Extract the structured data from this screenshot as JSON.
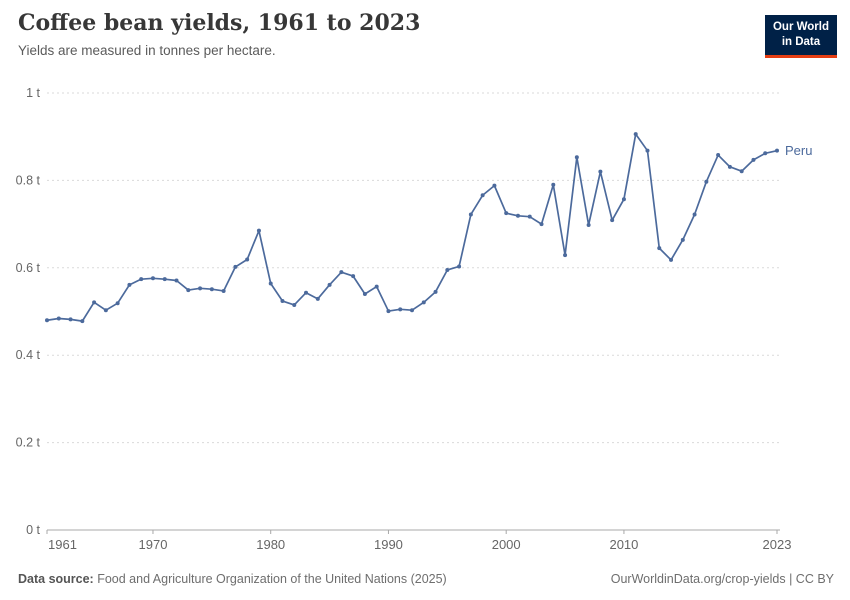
{
  "header": {
    "title": "Coffee bean yields, 1961 to 2023",
    "subtitle": "Yields are measured in tonnes per hectare."
  },
  "logo": {
    "line1": "Our World",
    "line2": "in Data",
    "bg_color": "#002147",
    "accent_color": "#E63E13"
  },
  "footer": {
    "source_label": "Data source:",
    "source_text": " Food and Agriculture Organization of the United Nations (2025)",
    "right_link": "OurWorldinData.org/crop-yields",
    "right_separator": " | ",
    "right_license": "CC BY"
  },
  "chart_data": {
    "type": "line",
    "title": "Coffee bean yields, 1961 to 2023",
    "xlabel": "",
    "ylabel": "tonnes per hectare",
    "xlim": [
      1961,
      2023
    ],
    "ylim": [
      0,
      1
    ],
    "grid": "horizontal-dashed",
    "legend_position": "end-of-line-label",
    "axis_color": "#a8a8a8",
    "grid_color": "#dadada",
    "tick_label_color": "#666666",
    "yticks": [
      {
        "v": 0,
        "label": "0 t"
      },
      {
        "v": 0.2,
        "label": "0.2 t"
      },
      {
        "v": 0.4,
        "label": "0.4 t"
      },
      {
        "v": 0.6,
        "label": "0.6 t"
      },
      {
        "v": 0.8,
        "label": "0.8 t"
      },
      {
        "v": 1,
        "label": "1 t"
      }
    ],
    "xticks": [
      1961,
      1970,
      1980,
      1990,
      2000,
      2010,
      2023
    ],
    "series": [
      {
        "name": "Peru",
        "color": "#4C6A9C",
        "x": [
          1961,
          1962,
          1963,
          1964,
          1965,
          1966,
          1967,
          1968,
          1969,
          1970,
          1971,
          1972,
          1973,
          1974,
          1975,
          1976,
          1977,
          1978,
          1979,
          1980,
          1981,
          1982,
          1983,
          1984,
          1985,
          1986,
          1987,
          1988,
          1989,
          1990,
          1991,
          1992,
          1993,
          1994,
          1995,
          1996,
          1997,
          1998,
          1999,
          2000,
          2001,
          2002,
          2003,
          2004,
          2005,
          2006,
          2007,
          2008,
          2009,
          2010,
          2011,
          2012,
          2013,
          2014,
          2015,
          2016,
          2017,
          2018,
          2019,
          2020,
          2021,
          2022,
          2023
        ],
        "values": [
          0.48,
          0.484,
          0.482,
          0.478,
          0.521,
          0.503,
          0.519,
          0.561,
          0.574,
          0.576,
          0.574,
          0.571,
          0.549,
          0.553,
          0.551,
          0.547,
          0.602,
          0.619,
          0.685,
          0.564,
          0.524,
          0.515,
          0.543,
          0.529,
          0.561,
          0.59,
          0.581,
          0.54,
          0.557,
          0.501,
          0.505,
          0.503,
          0.521,
          0.545,
          0.595,
          0.603,
          0.722,
          0.766,
          0.788,
          0.725,
          0.719,
          0.717,
          0.7,
          0.79,
          0.629,
          0.853,
          0.698,
          0.82,
          0.709,
          0.757,
          0.906,
          0.868,
          0.645,
          0.618,
          0.664,
          0.722,
          0.797,
          0.858,
          0.831,
          0.821,
          0.847,
          0.862,
          0.868
        ]
      }
    ]
  }
}
